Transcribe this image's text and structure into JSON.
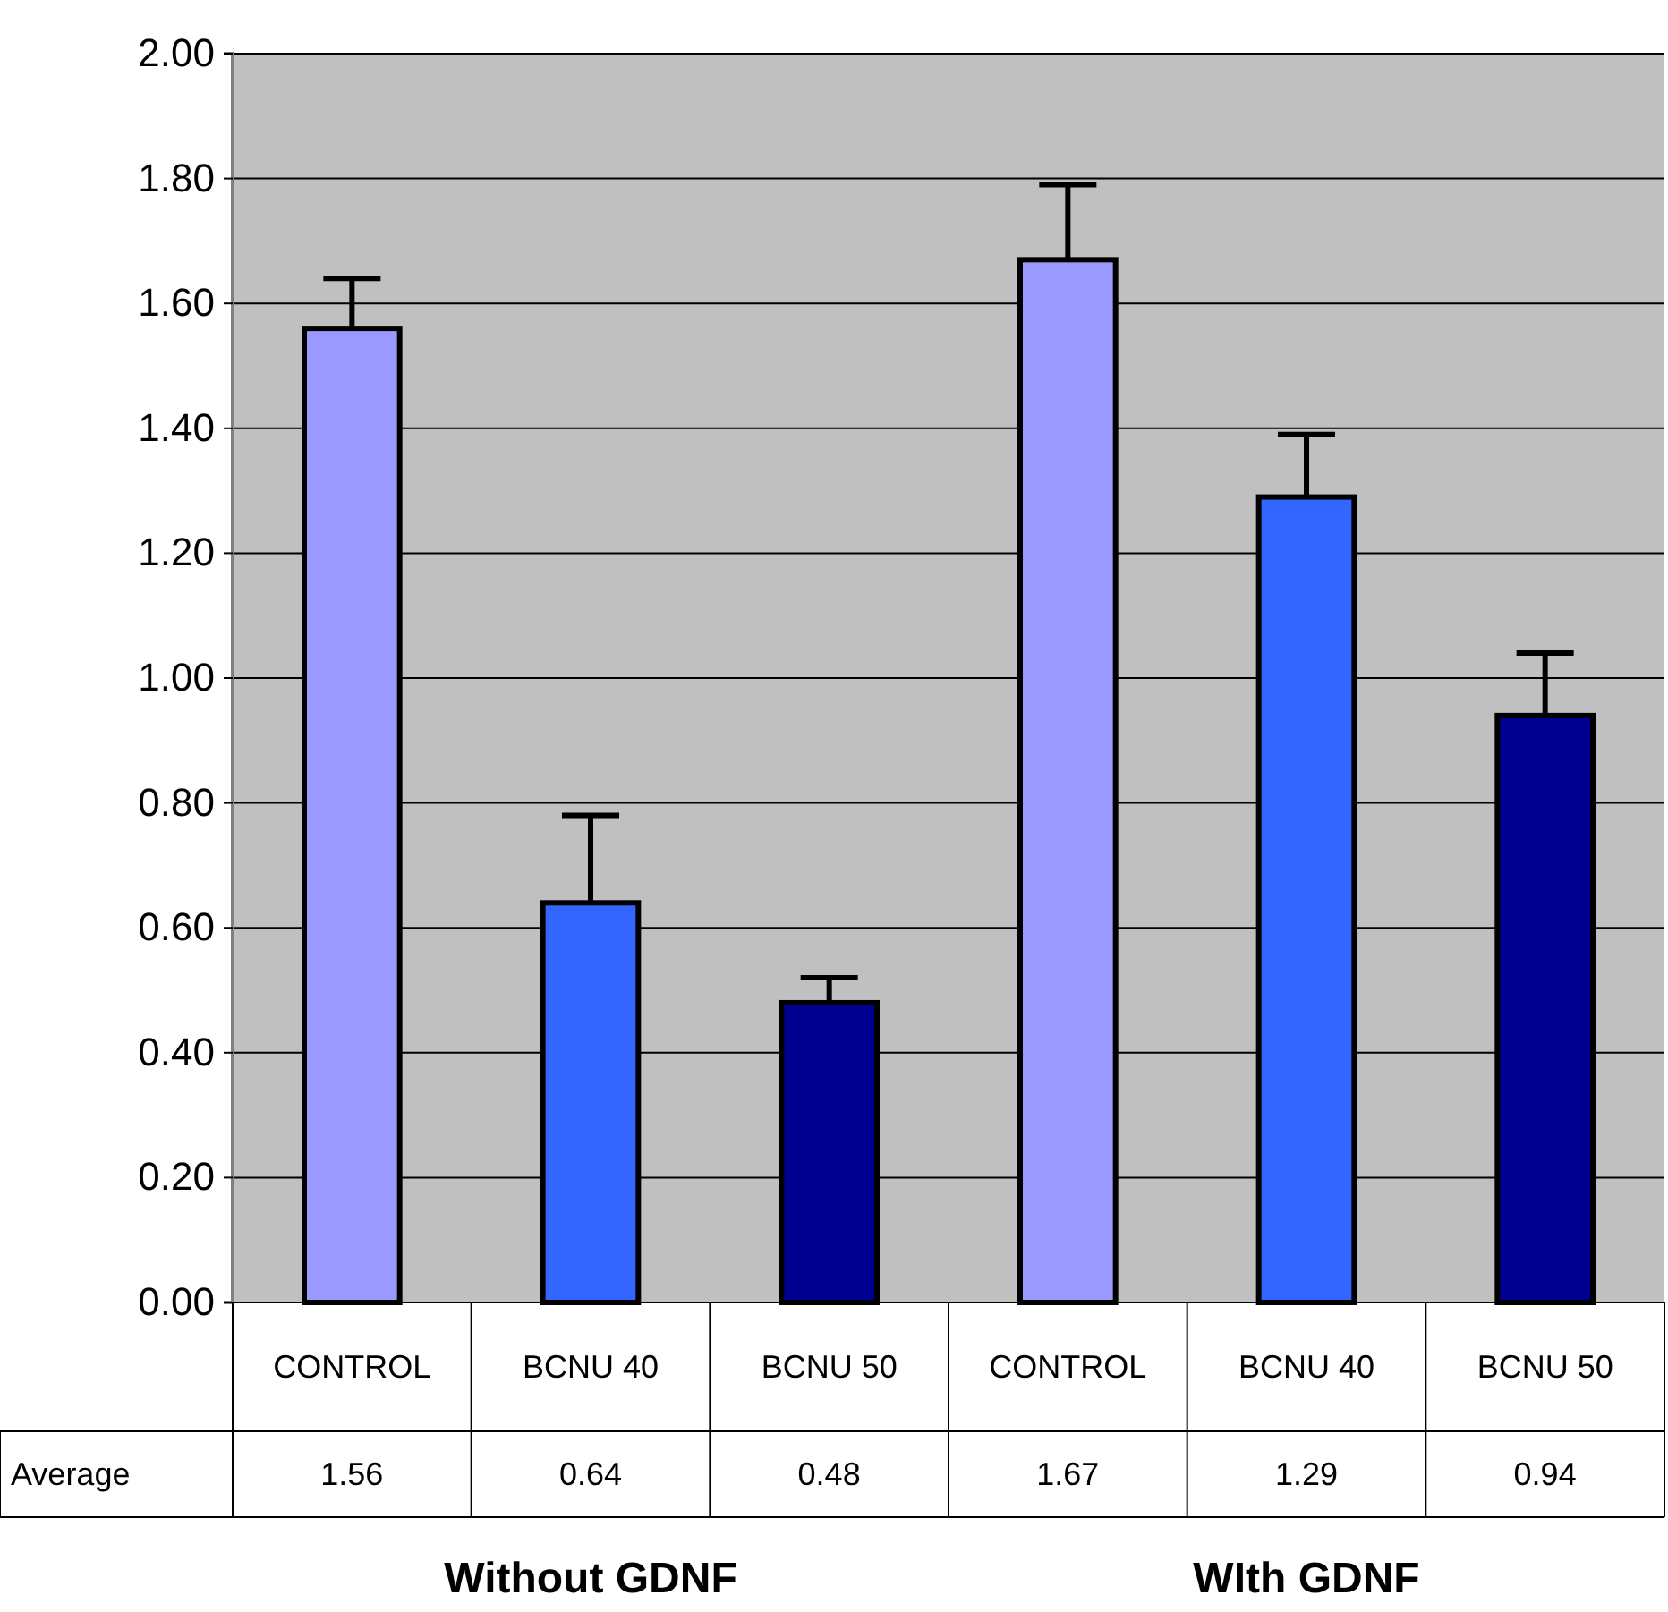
{
  "chart_data": {
    "type": "bar",
    "categories": [
      "CONTROL",
      "BCNU 40",
      "BCNU 50",
      "CONTROL",
      "BCNU 40",
      "BCNU 50"
    ],
    "series": [
      {
        "name": "Average",
        "colors": [
          "#9999ff",
          "#3366ff",
          "#000090",
          "#9999ff",
          "#3366ff",
          "#000090"
        ],
        "values": [
          1.56,
          0.64,
          0.48,
          1.67,
          1.29,
          0.94
        ],
        "errors": [
          0.08,
          0.14,
          0.04,
          0.12,
          0.1,
          0.1
        ]
      }
    ],
    "ylim": [
      0,
      2
    ],
    "yticks": [
      {
        "value": 0,
        "label": "0.00"
      },
      {
        "value": 0.2,
        "label": "0.20"
      },
      {
        "value": 0.4,
        "label": "0.40"
      },
      {
        "value": 0.6,
        "label": "0.60"
      },
      {
        "value": 0.8,
        "label": "0.80"
      },
      {
        "value": 1,
        "label": "1.00"
      },
      {
        "value": 1.2,
        "label": "1.20"
      },
      {
        "value": 1.4,
        "label": "1.40"
      },
      {
        "value": 1.6,
        "label": "1.60"
      },
      {
        "value": 1.8,
        "label": "1.80"
      },
      {
        "value": 2,
        "label": "2.00"
      }
    ],
    "grid": "y",
    "data_labels": true,
    "annotations": [
      "Without GDNF",
      "WIth GDNF"
    ]
  }
}
